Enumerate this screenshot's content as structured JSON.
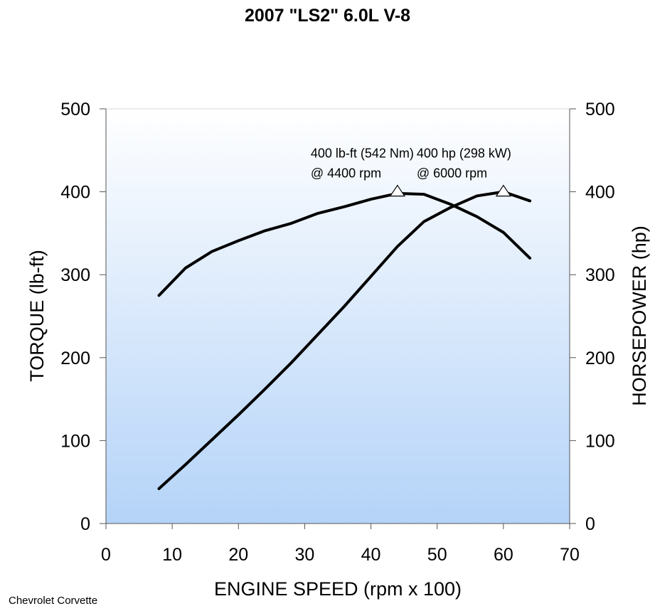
{
  "chart_data": {
    "type": "line",
    "title": "2007 \"LS2\" 6.0L V-8",
    "xlabel": "ENGINE SPEED (rpm x 100)",
    "ylabel_left": "TORQUE (lb-ft)",
    "ylabel_right": "HORSEPOWER (hp)",
    "xlim": [
      0,
      70
    ],
    "ylim": [
      0,
      500
    ],
    "x_ticks": [
      0,
      10,
      20,
      30,
      40,
      50,
      60,
      70
    ],
    "y_ticks": [
      0,
      100,
      200,
      300,
      400,
      500
    ],
    "x": [
      8,
      12,
      16,
      20,
      24,
      28,
      32,
      36,
      40,
      44,
      48,
      52,
      56,
      60,
      64
    ],
    "series": [
      {
        "axis": "left",
        "values": [
          275,
          308,
          328,
          341,
          353,
          362,
          374,
          382,
          391,
          398,
          397,
          385,
          370,
          351,
          320
        ]
      },
      {
        "axis": "right",
        "values": [
          42,
          71,
          101,
          131,
          162,
          194,
          228,
          262,
          298,
          334,
          364,
          381,
          395,
          400,
          389
        ]
      }
    ],
    "annotations": [
      {
        "x": 44,
        "y": 400,
        "line1": "400 lb-ft (542 Nm)",
        "line2": "@ 4400 rpm",
        "marker": "triangle"
      },
      {
        "x": 60,
        "y": 400,
        "line1": "400 hp (298 kW)",
        "line2": "@ 6000 rpm",
        "marker": "triangle"
      }
    ],
    "background": {
      "gradient_top": "#ffffff",
      "gradient_bottom": "#b4d3f8"
    },
    "line_color": "#000000"
  },
  "footer": "Chevrolet Corvette"
}
